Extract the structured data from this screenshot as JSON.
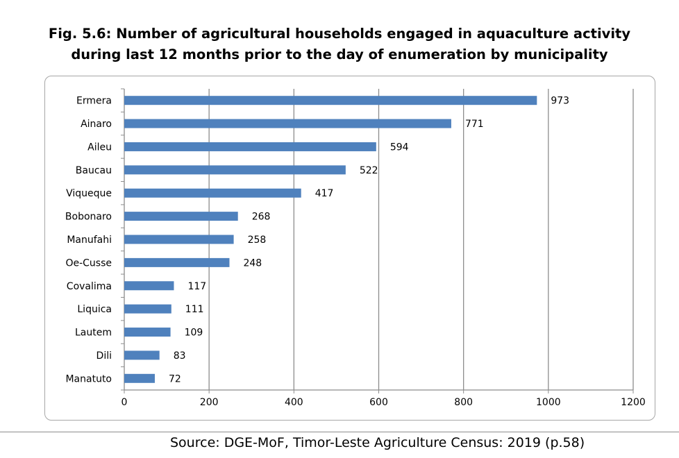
{
  "chart_data": {
    "type": "bar",
    "orientation": "horizontal",
    "title": "Fig. 5.6: Number of agricultural households engaged in aquaculture activity during last 12 months prior  to the day of enumeration by municipality",
    "title_lines": [
      "Fig. 5.6: Number of agricultural households engaged in aquaculture activity",
      "during last 12 months prior  to the day of enumeration by municipality"
    ],
    "categories": [
      "Ermera",
      "Ainaro",
      "Aileu",
      "Baucau",
      "Viqueque",
      "Bobonaro",
      "Manufahi",
      "Oe-Cusse",
      "Covalima",
      "Liquica",
      "Lautem",
      "Dili",
      "Manatuto"
    ],
    "values": [
      973,
      771,
      594,
      522,
      417,
      268,
      258,
      248,
      117,
      111,
      109,
      83,
      72
    ],
    "xlim": [
      0,
      1200
    ],
    "xticks": [
      0,
      200,
      400,
      600,
      800,
      1000,
      1200
    ],
    "grid": true,
    "legend": "none",
    "bar_color": "#4f81bd",
    "xlabel": "",
    "ylabel": ""
  },
  "source": "Source: DGE-MoF, Timor-Leste Agriculture Census: 2019 (p.58)"
}
